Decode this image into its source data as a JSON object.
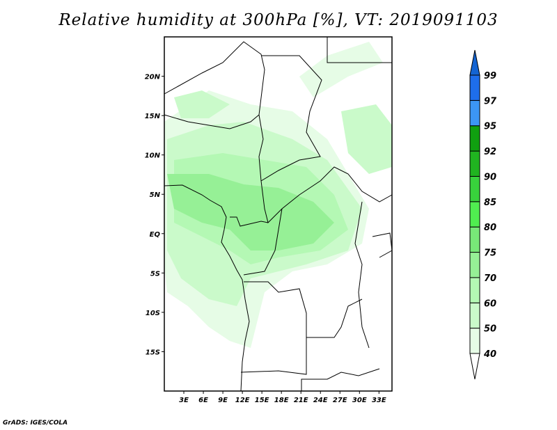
{
  "title": "Relative humidity at 300hPa [%], VT: 2019091103",
  "credit": "GrADS: IGES/COLA",
  "map": {
    "lon_range": [
      0,
      35
    ],
    "lat_range": [
      -20,
      25
    ],
    "x_ticks": [
      "3E",
      "6E",
      "9E",
      "12E",
      "15E",
      "18E",
      "21E",
      "24E",
      "27E",
      "30E",
      "33E"
    ],
    "x_tick_values": [
      3,
      6,
      9,
      12,
      15,
      18,
      21,
      24,
      27,
      30,
      33
    ],
    "y_ticks": [
      "20N",
      "15N",
      "10N",
      "5N",
      "EQ",
      "5S",
      "10S",
      "15S"
    ],
    "y_tick_values": [
      20,
      15,
      10,
      5,
      0,
      -5,
      -10,
      -15
    ]
  },
  "colorbar": {
    "levels": [
      "40",
      "50",
      "60",
      "70",
      "75",
      "80",
      "85",
      "90",
      "92",
      "95",
      "97",
      "99"
    ],
    "colors": [
      "#e6fce6",
      "#cafaca",
      "#b4f8b4",
      "#96f096",
      "#78e878",
      "#50ee50",
      "#38d23c",
      "#20b420",
      "#10a010",
      "#3c96f5",
      "#1e6eeb",
      "#1464d2"
    ],
    "below_color": "#ffffff"
  }
}
